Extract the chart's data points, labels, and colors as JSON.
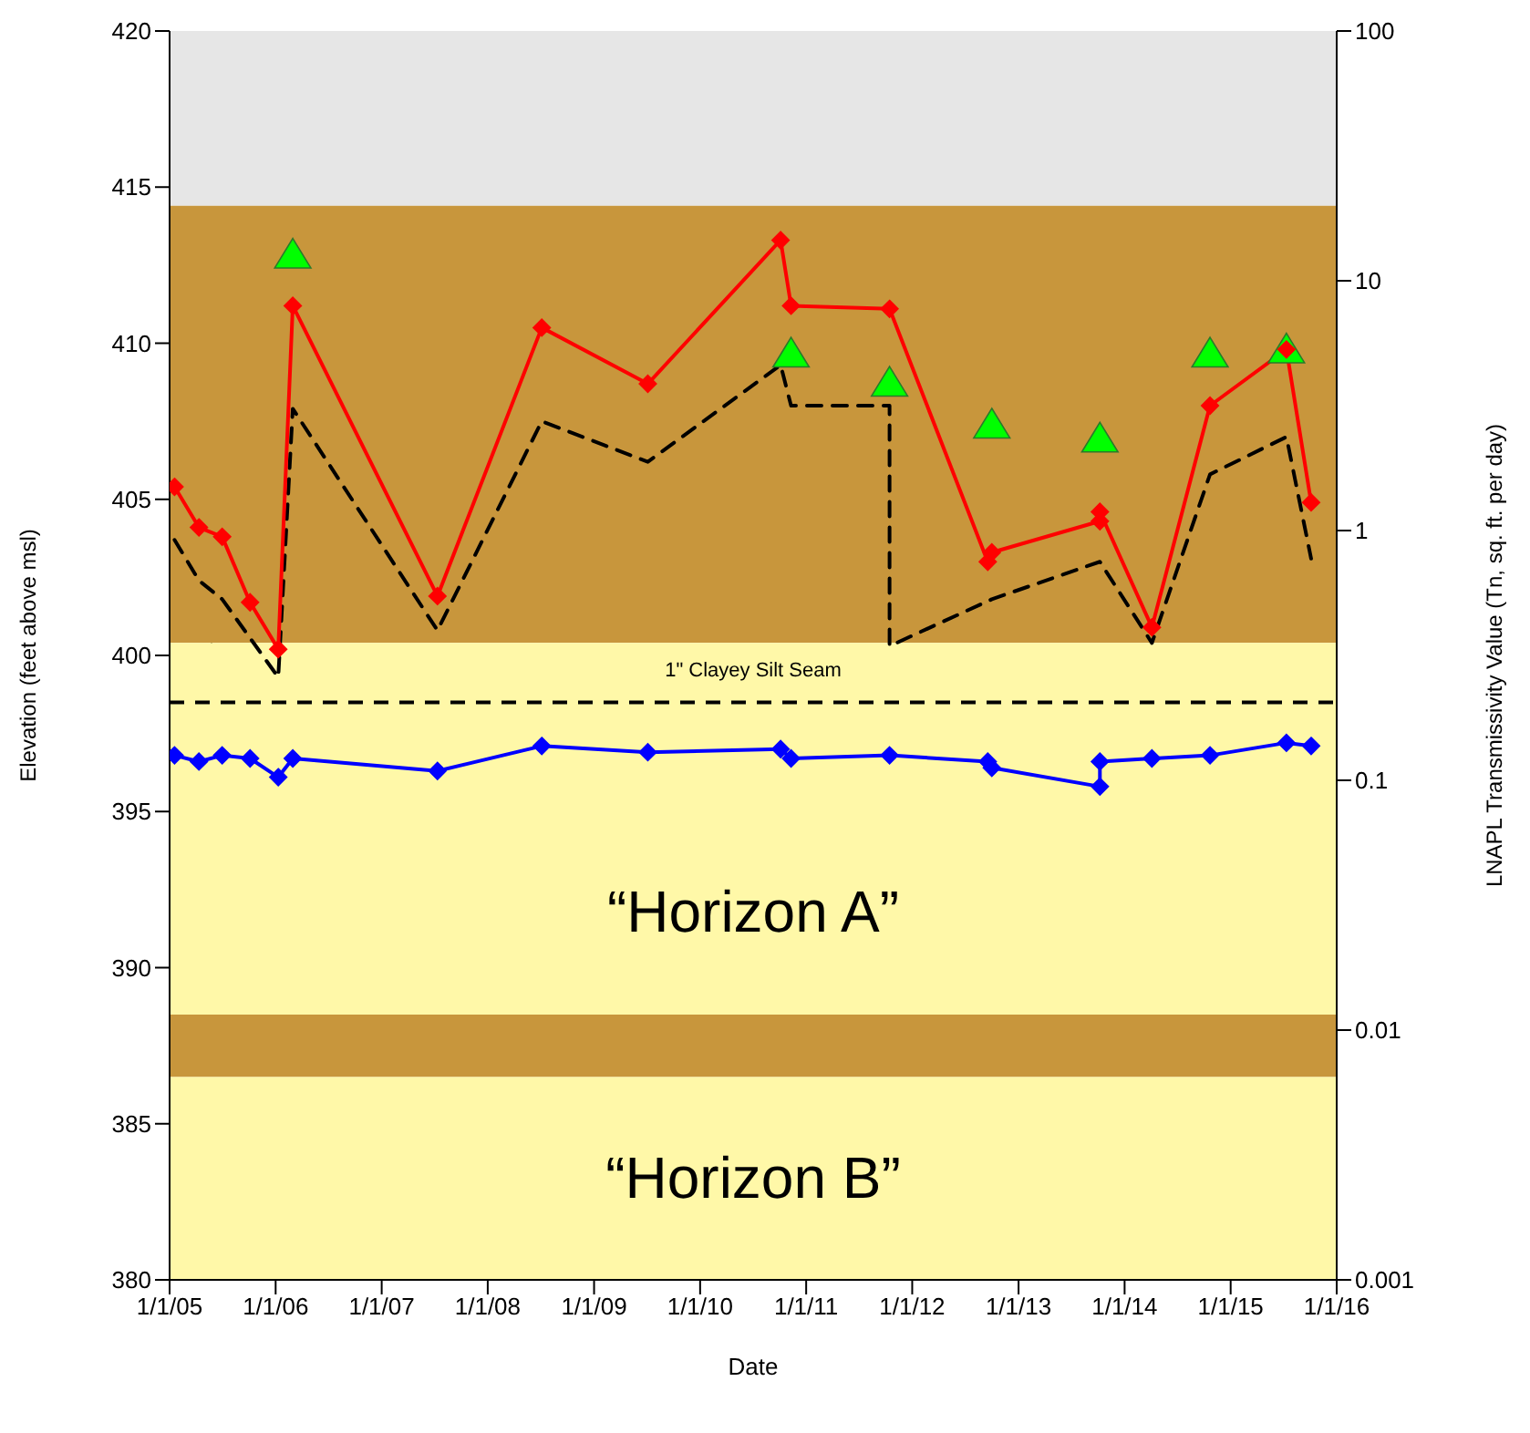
{
  "chart_data": {
    "type": "line",
    "xlabel": "Date",
    "ylabel": "Elevation (feet above msl)",
    "y2label": "LNAPL Transmissivity Value (Tn, sq. ft. per day)",
    "xlim": [
      "2005-01-01",
      "2016-01-01"
    ],
    "xticks": [
      {
        "value": "2005-01-01",
        "label": "1/1/05"
      },
      {
        "value": "2006-01-01",
        "label": "1/1/06"
      },
      {
        "value": "2007-01-01",
        "label": "1/1/07"
      },
      {
        "value": "2008-01-01",
        "label": "1/1/08"
      },
      {
        "value": "2009-01-01",
        "label": "1/1/09"
      },
      {
        "value": "2010-01-01",
        "label": "1/1/10"
      },
      {
        "value": "2011-01-01",
        "label": "1/1/11"
      },
      {
        "value": "2012-01-01",
        "label": "1/1/12"
      },
      {
        "value": "2013-01-01",
        "label": "1/1/13"
      },
      {
        "value": "2014-01-01",
        "label": "1/1/14"
      },
      {
        "value": "2015-01-01",
        "label": "1/1/15"
      },
      {
        "value": "2016-01-01",
        "label": "1/1/16"
      }
    ],
    "ylim": [
      380,
      420
    ],
    "yticks": [
      380,
      385,
      390,
      395,
      400,
      405,
      410,
      415,
      420
    ],
    "y2lim": [
      0.001,
      100
    ],
    "y2ticks": [
      0.001,
      0.01,
      0.1,
      1,
      10,
      100
    ],
    "log": "y2",
    "series": [
      {
        "type": "line",
        "color": "#000000",
        "line_style": "dashed",
        "marker": "none",
        "x": [
          "2005-01-18",
          "2005-04-12",
          "2005-07-01",
          "2006-01-10",
          "2006-03-01",
          "2007-07-12",
          "2008-07-05",
          "2009-07-05",
          "2010-10-05",
          "2010-11-10",
          "2011-10-15",
          "2011-10-15",
          "2012-10-01",
          "2013-10-08",
          "2014-04-05",
          "2014-10-22",
          "2015-07-12",
          "2015-10-05"
        ],
        "values": [
          403.7,
          402.4,
          401.8,
          399.3,
          407.9,
          400.8,
          407.5,
          406.2,
          409.3,
          408.0,
          408.0,
          400.3,
          401.8,
          403.0,
          400.4,
          405.8,
          407.0,
          403.1
        ]
      },
      {
        "type": "line",
        "color": "#ff0000",
        "line_style": "solid",
        "marker": "diamond",
        "x": [
          "2005-01-18",
          "2005-04-12",
          "2005-07-01",
          "2005-10-05",
          "2006-01-10",
          "2006-03-01",
          "2007-07-12",
          "2008-07-05",
          "2009-07-05",
          "2010-10-05",
          "2010-11-10",
          "2011-10-15",
          "2012-09-17",
          "2012-10-01",
          "2013-10-08",
          "2013-10-08",
          "2014-04-05",
          "2014-10-22",
          "2015-07-12",
          "2015-10-05"
        ],
        "values": [
          405.4,
          404.1,
          403.8,
          401.7,
          400.2,
          411.2,
          401.9,
          410.5,
          408.7,
          413.3,
          411.2,
          411.1,
          403.0,
          403.3,
          404.3,
          404.6,
          400.9,
          408.0,
          409.8,
          404.9
        ]
      },
      {
        "type": "line",
        "color": "#0000ff",
        "line_style": "solid",
        "marker": "diamond",
        "x": [
          "2005-01-18",
          "2005-04-12",
          "2005-07-01",
          "2005-10-05",
          "2006-01-10",
          "2006-03-01",
          "2007-07-12",
          "2008-07-05",
          "2009-07-05",
          "2010-10-05",
          "2010-11-10",
          "2011-10-15",
          "2012-09-17",
          "2012-10-01",
          "2013-10-08",
          "2013-10-08",
          "2014-04-05",
          "2014-10-22",
          "2015-07-12",
          "2015-10-05"
        ],
        "values": [
          396.8,
          396.6,
          396.8,
          396.7,
          396.1,
          396.7,
          396.3,
          397.1,
          396.9,
          397.0,
          396.7,
          396.8,
          396.6,
          396.4,
          395.8,
          396.6,
          396.7,
          396.8,
          397.2,
          397.1
        ]
      },
      {
        "type": "scatter",
        "axis": "y2",
        "color": "#00ff00",
        "marker": "triangle",
        "x": [
          "2006-03-01",
          "2010-11-10",
          "2011-10-15",
          "2012-10-01",
          "2013-10-08",
          "2014-10-22",
          "2015-07-12"
        ],
        "values": [
          12.7,
          5.1,
          3.9,
          2.65,
          2.33,
          5.1,
          5.3
        ]
      }
    ],
    "bands": [
      {
        "axis": "y",
        "from": 414.4,
        "to": 420,
        "color": "#e6e6e6"
      },
      {
        "axis": "y",
        "from": 400.4,
        "to": 414.4,
        "color": "#c8963c"
      },
      {
        "axis": "y",
        "from": 388.5,
        "to": 400.4,
        "color": "#fff8a8"
      },
      {
        "axis": "y",
        "from": 386.5,
        "to": 388.5,
        "color": "#c8963c"
      },
      {
        "axis": "y",
        "from": 380,
        "to": 386.5,
        "color": "#fff8a8"
      }
    ],
    "ref_lines": [
      {
        "axis": "y",
        "value": 398.5,
        "label": "1\" Clayey Silt Seam",
        "color": "#000000",
        "line_style": "dashed"
      }
    ],
    "annotations": [
      "“Horizon A”",
      "“Horizon B”"
    ]
  }
}
